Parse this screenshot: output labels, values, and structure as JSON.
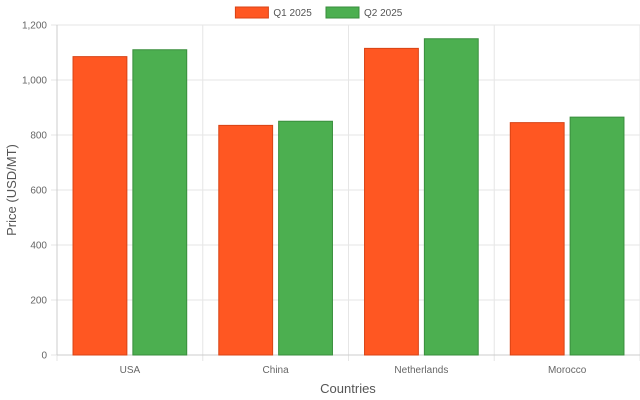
{
  "chart_data": {
    "type": "bar",
    "title": "",
    "xlabel": "Countries",
    "ylabel": "Price (USD/MT)",
    "categories": [
      "USA",
      "China",
      "Netherlands",
      "Morocco"
    ],
    "series": [
      {
        "name": "Q1 2025",
        "values": [
          1085,
          835,
          1115,
          845
        ],
        "color": "#FF5722",
        "border": "#D84315"
      },
      {
        "name": "Q2 2025",
        "values": [
          1110,
          850,
          1150,
          865
        ],
        "color": "#4CAF50",
        "border": "#388E3C"
      }
    ],
    "ylim": [
      0,
      1200
    ],
    "yticks": [
      0,
      200,
      400,
      600,
      800,
      1000,
      1200
    ],
    "ytick_labels": [
      "0",
      "200",
      "400",
      "600",
      "800",
      "1,000",
      "1,200"
    ],
    "grid": true,
    "legend_position": "top-center"
  }
}
